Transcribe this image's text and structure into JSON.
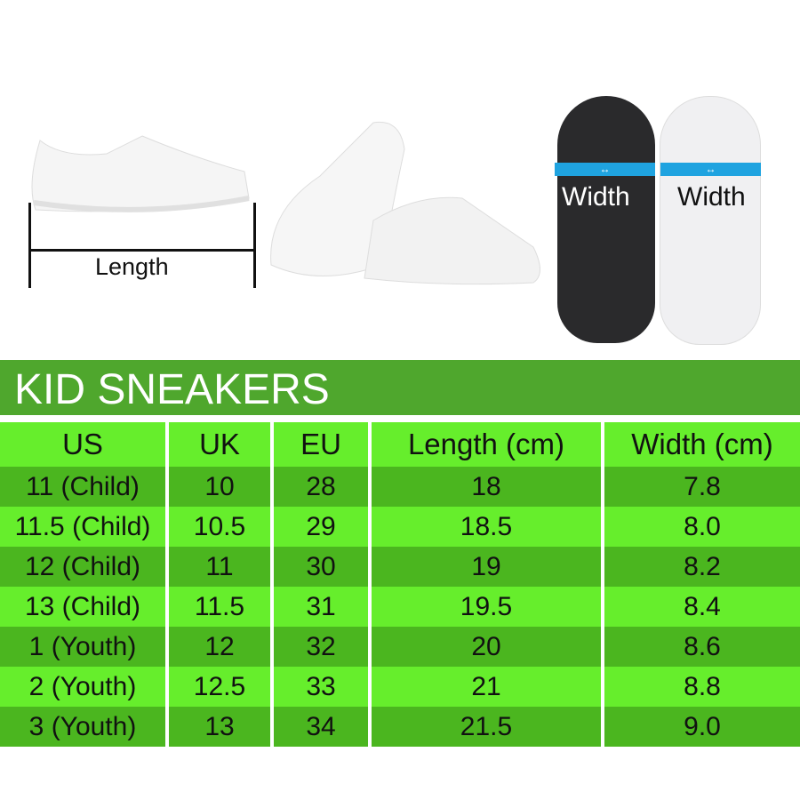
{
  "illustrations": {
    "length_label": "Length",
    "width_label_dark": "Width",
    "width_label_light": "Width",
    "arrow_color": "#1fa3e0"
  },
  "title": "KID SNEAKERS",
  "table": {
    "headers": [
      "US",
      "UK",
      "EU",
      "Length (cm)",
      "Width (cm)"
    ],
    "rows": [
      [
        "11 (Child)",
        "10",
        "28",
        "18",
        "7.8"
      ],
      [
        "11.5 (Child)",
        "10.5",
        "29",
        "18.5",
        "8.0"
      ],
      [
        "12 (Child)",
        "11",
        "30",
        "19",
        "8.2"
      ],
      [
        "13 (Child)",
        "11.5",
        "31",
        "19.5",
        "8.4"
      ],
      [
        "1 (Youth)",
        "12",
        "32",
        "20",
        "8.6"
      ],
      [
        "2 (Youth)",
        "12.5",
        "33",
        "21",
        "8.8"
      ],
      [
        "3 (Youth)",
        "13",
        "34",
        "21.5",
        "9.0"
      ]
    ]
  },
  "colors": {
    "title_bg": "#4fa72d",
    "light_row": "#66ee2c",
    "dark_row": "#4bb61f"
  }
}
